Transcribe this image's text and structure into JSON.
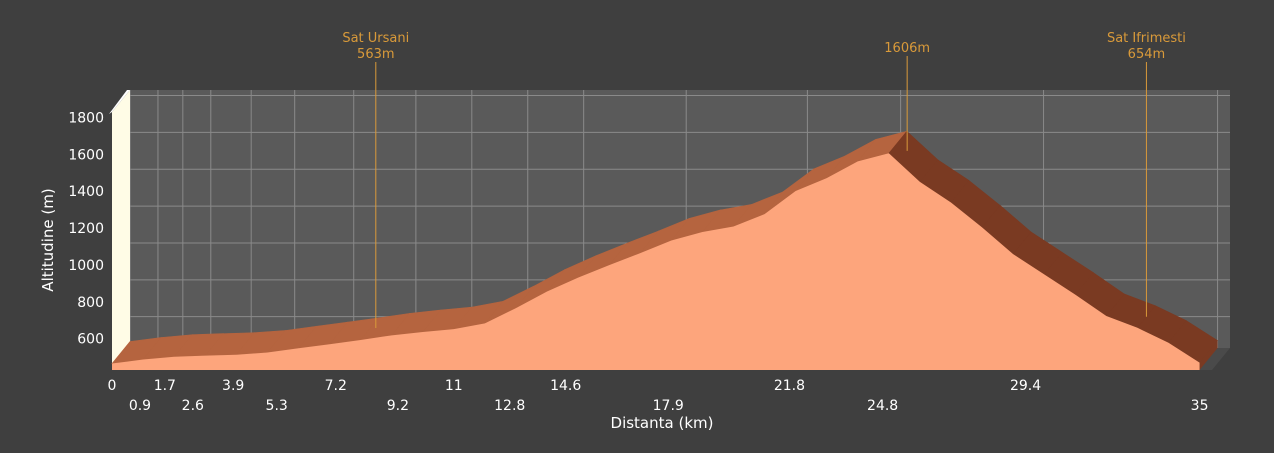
{
  "chart_data": {
    "type": "area",
    "title": "",
    "xlabel": "Distanta (km)",
    "ylabel": "Altitudine (m)",
    "xlim": [
      0,
      35.4
    ],
    "ylim": [
      430,
      1830
    ],
    "grid": true,
    "y_ticks": [
      600,
      800,
      1000,
      1200,
      1400,
      1600,
      1800
    ],
    "x_tick_labels_top_row": [
      "0",
      "1.7",
      "3.9",
      "7.2",
      "11",
      "14.6",
      "21.8",
      "29.4"
    ],
    "x_tick_labels_bottom_row": [
      "0.9",
      "2.6",
      "5.3",
      "9.2",
      "12.8",
      "17.9",
      "24.8",
      "35"
    ],
    "x_tick_positions_km": [
      0,
      0.9,
      1.7,
      2.6,
      3.9,
      5.3,
      7.2,
      9.2,
      11,
      12.8,
      14.6,
      17.9,
      21.8,
      24.8,
      29.4,
      35
    ],
    "series": [
      {
        "x": [
          0,
          1,
          2,
          3,
          4,
          5,
          6,
          7,
          8,
          9,
          10,
          11,
          12,
          13,
          14,
          15,
          16,
          17,
          18,
          19,
          20,
          21,
          22,
          23,
          24,
          25,
          26,
          27,
          28,
          29,
          30,
          31,
          32,
          33,
          34,
          35
        ],
        "y": [
          465,
          487,
          502,
          508,
          513,
          525,
          548,
          570,
          593,
          618,
          636,
          652,
          683,
          766,
          856,
          931,
          999,
          1064,
          1133,
          1179,
          1209,
          1276,
          1401,
          1471,
          1562,
          1606,
          1451,
          1339,
          1204,
          1059,
          949,
          839,
          723,
          659,
          578,
          470
        ]
      }
    ],
    "annotations": [
      {
        "name": "Sat Ursani",
        "value": "563m",
        "x_km": 8.2
      },
      {
        "name": "",
        "value": "1606m",
        "x_km": 25.3
      },
      {
        "name": "Sat Ifrimesti",
        "value": "654m",
        "x_km": 33.0
      }
    ],
    "colors": {
      "background": "#3f3f3f",
      "plot_back": "#5a5a5a",
      "plot_top": "#555555",
      "grid": "#8a8a8a",
      "area_front": "#fda57c",
      "area_top": "#b5643f",
      "area_side": "#7a3a22",
      "axis_face": "#fffce6",
      "annotation": "#d99a3a",
      "text": "#ffffff"
    }
  }
}
